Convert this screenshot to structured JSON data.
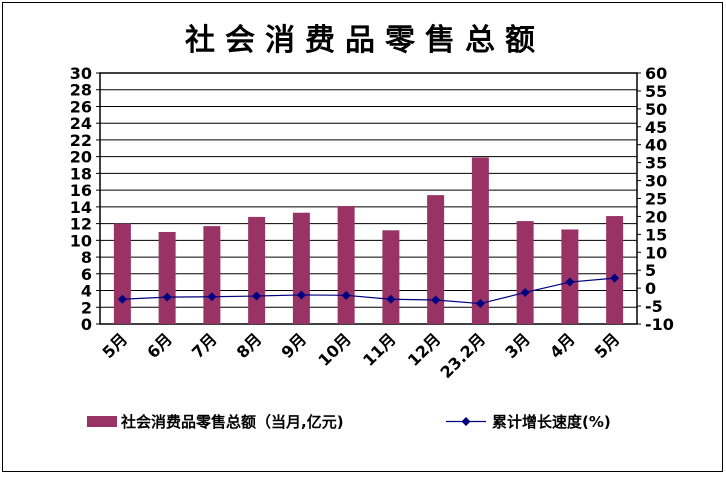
{
  "chart_data": {
    "type": "bar",
    "title": "社会消费品零售总额",
    "categories": [
      "5月",
      "6月",
      "7月",
      "8月",
      "9月",
      "10月",
      "11月",
      "12月",
      "23.2月",
      "3月",
      "4月",
      "5月"
    ],
    "series": [
      {
        "name": "社会消费品零售总额（当月,亿元)",
        "type": "bar",
        "axis": "left",
        "color": "#993366",
        "values": [
          12.0,
          11.0,
          11.7,
          12.8,
          13.3,
          14.1,
          11.2,
          15.4,
          19.9,
          12.3,
          11.3,
          12.9
        ]
      },
      {
        "name": "累计增长速度(%)",
        "type": "line",
        "axis": "right",
        "color": "#000080",
        "values": [
          -3.1,
          -2.5,
          -2.4,
          -2.2,
          -1.9,
          -2.0,
          -3.1,
          -3.3,
          -4.3,
          -1.2,
          1.7,
          2.8
        ]
      }
    ],
    "left_axis": {
      "min": 0,
      "max": 30,
      "step": 2,
      "ticks": [
        "0",
        "2",
        "4",
        "6",
        "8",
        "10",
        "12",
        "14",
        "16",
        "18",
        "20",
        "22",
        "24",
        "26",
        "28",
        "30"
      ]
    },
    "right_axis": {
      "min": -10,
      "max": 60,
      "step": 5,
      "ticks": [
        "-10",
        "-5",
        "0",
        "5",
        "10",
        "15",
        "20",
        "25",
        "30",
        "35",
        "40",
        "45",
        "50",
        "55",
        "60"
      ]
    },
    "grid": "horizontal",
    "legend_position": "bottom"
  }
}
